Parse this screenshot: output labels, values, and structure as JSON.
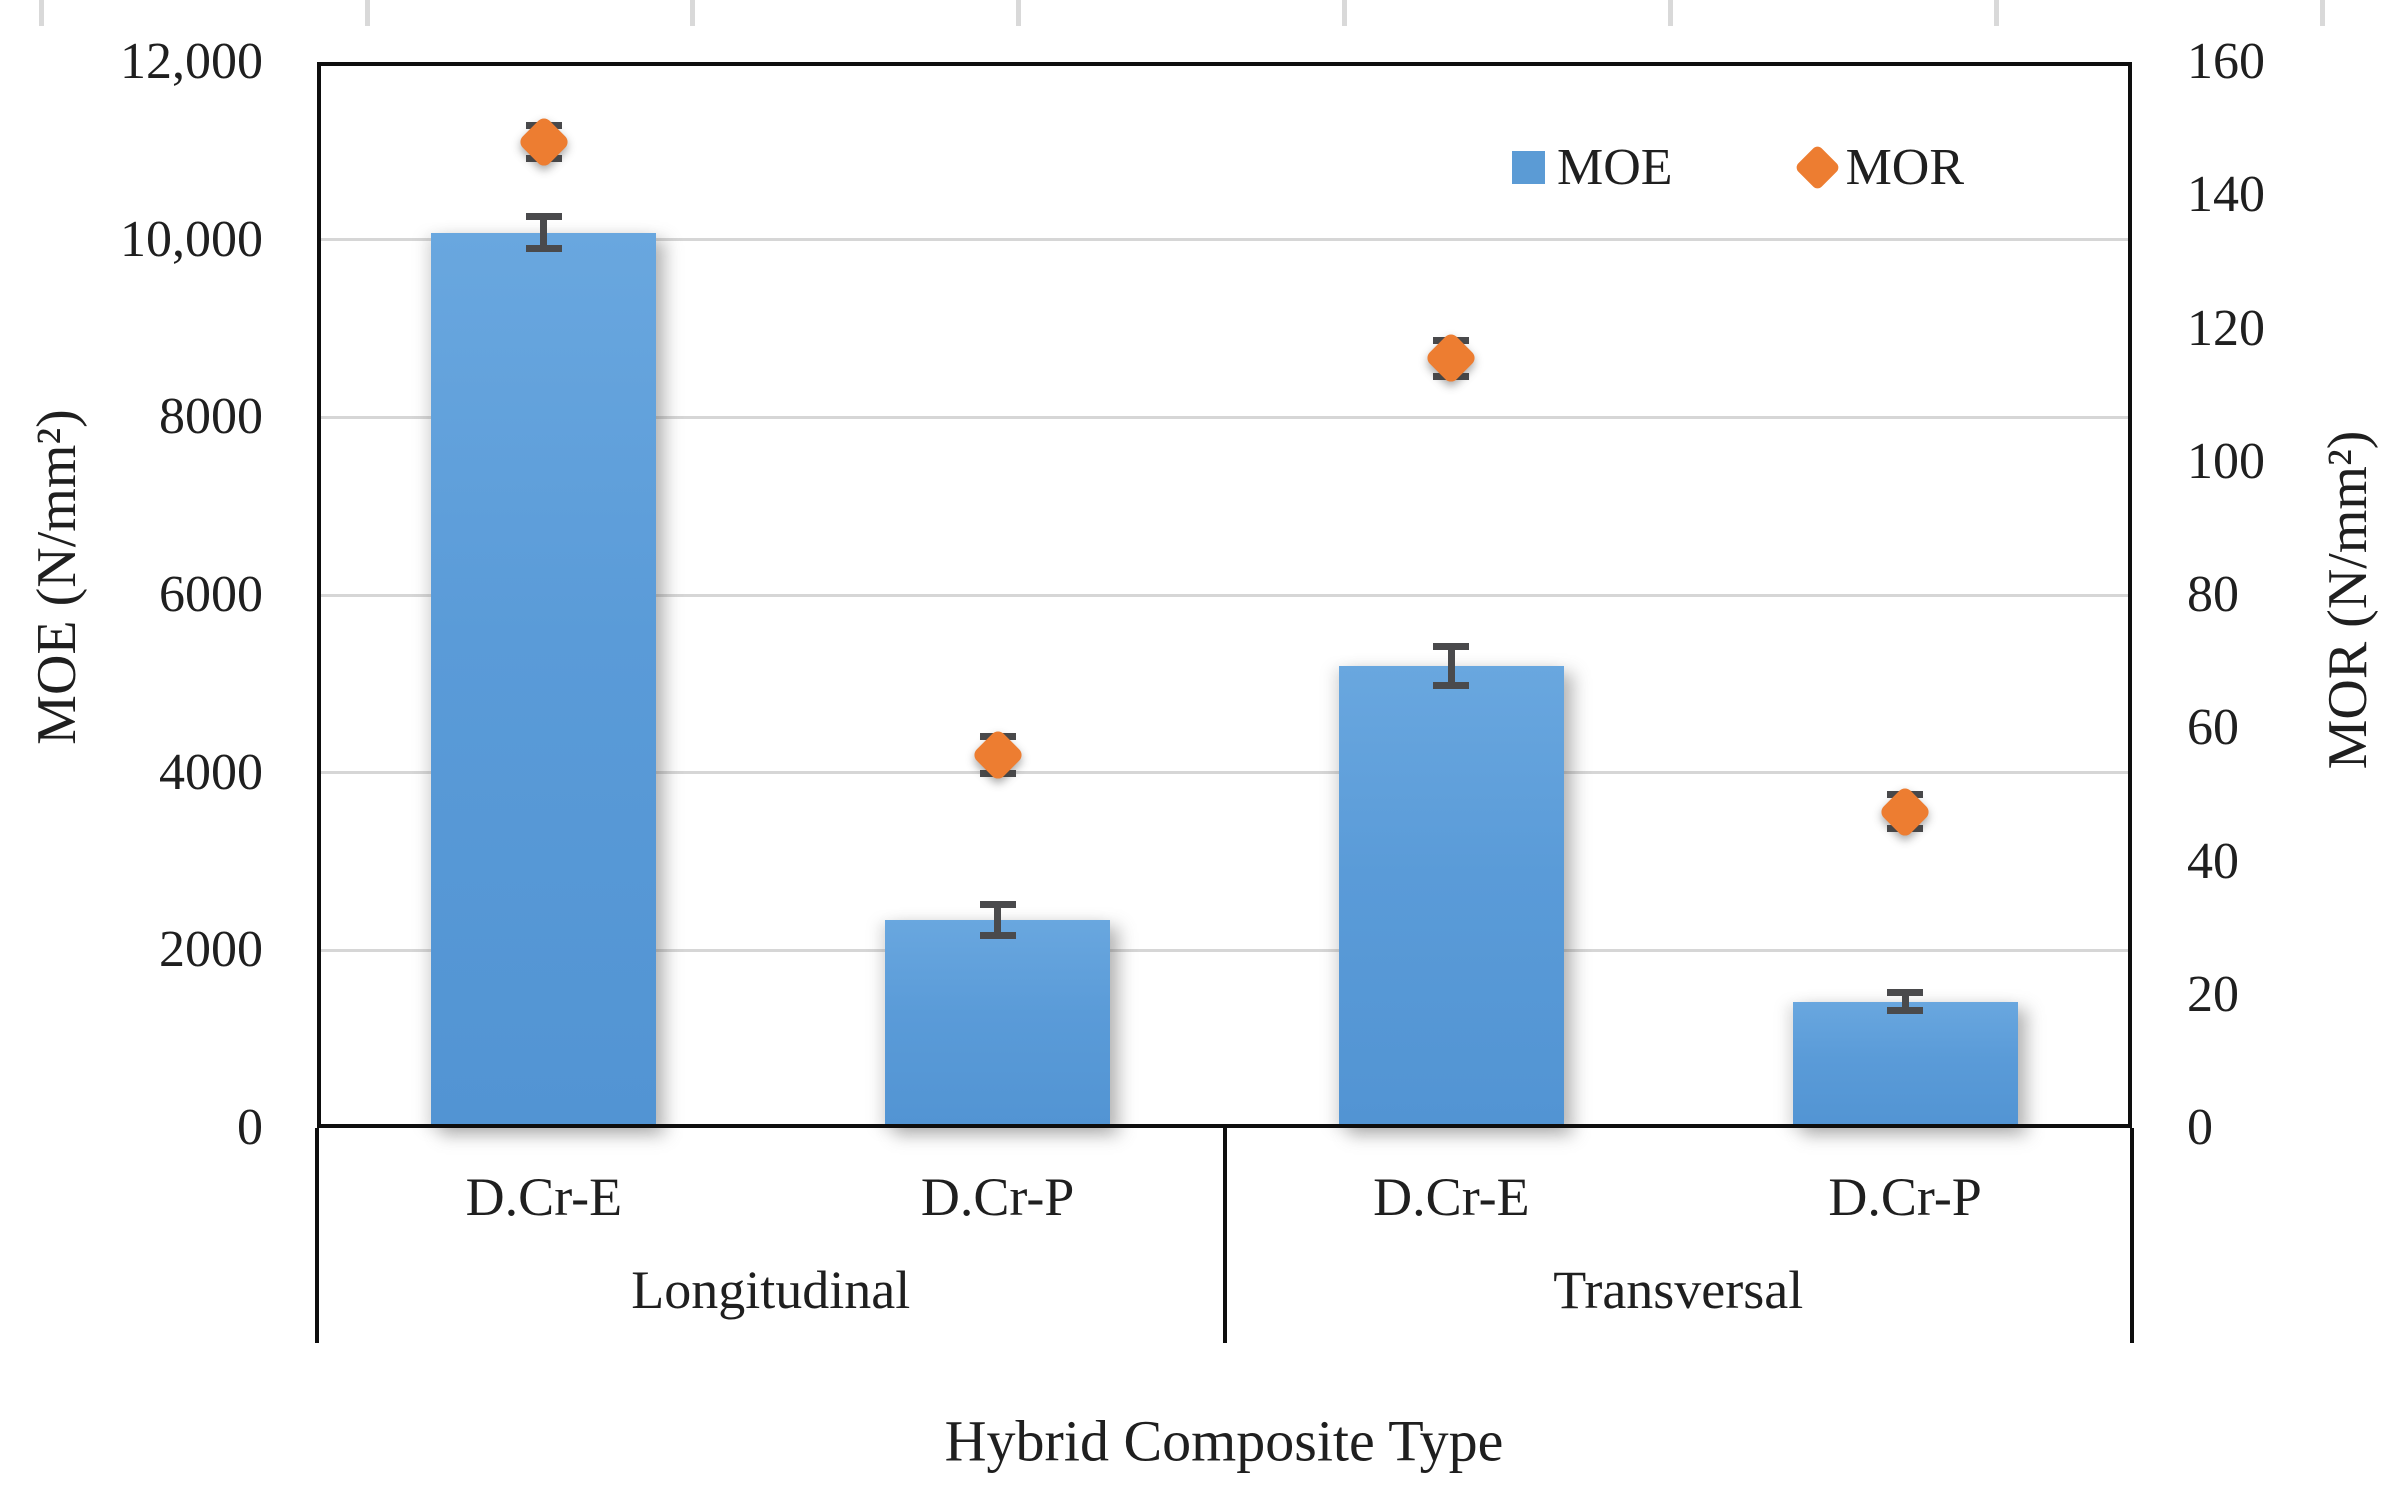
{
  "chart_data": {
    "type": "bar",
    "subtype": "dual-axis bar + scatter(diamond) with error bars",
    "title": "",
    "xlabel": "Hybrid Composite Type",
    "left_axis": {
      "label": "MOE (N/mm²)",
      "min": 0,
      "max": 12000,
      "step": 2000,
      "ticks": [
        {
          "value": 0,
          "label": "0"
        },
        {
          "value": 2000,
          "label": "2000"
        },
        {
          "value": 4000,
          "label": "4000"
        },
        {
          "value": 6000,
          "label": "6000"
        },
        {
          "value": 8000,
          "label": "8000"
        },
        {
          "value": 10000,
          "label": "10,000"
        },
        {
          "value": 12000,
          "label": "12,000"
        }
      ]
    },
    "right_axis": {
      "label": "MOR (N/mm²)",
      "min": 0,
      "max": 160,
      "step": 20,
      "ticks": [
        {
          "value": 0,
          "label": "0"
        },
        {
          "value": 20,
          "label": "20"
        },
        {
          "value": 40,
          "label": "40"
        },
        {
          "value": 60,
          "label": "60"
        },
        {
          "value": 80,
          "label": "80"
        },
        {
          "value": 100,
          "label": "100"
        },
        {
          "value": 120,
          "label": "120"
        },
        {
          "value": 140,
          "label": "140"
        },
        {
          "value": 160,
          "label": "160"
        }
      ]
    },
    "groups": [
      {
        "label": "Longitudinal",
        "categories": [
          "D.Cr-E",
          "D.Cr-P"
        ]
      },
      {
        "label": "Transversal",
        "categories": [
          "D.Cr-E",
          "D.Cr-P"
        ]
      }
    ],
    "series": [
      {
        "name": "MOE",
        "type": "bar",
        "axis": "left",
        "color": "#5B9BD5",
        "values": [
          10080,
          2340,
          5200,
          1420
        ],
        "errors": [
          185,
          175,
          220,
          100
        ]
      },
      {
        "name": "MOR",
        "type": "scatter-diamond",
        "axis": "right",
        "color": "#ED7D31",
        "values": [
          148,
          56,
          115.5,
          47.5
        ],
        "errors": [
          2.5,
          2.8,
          2.7,
          2.6
        ]
      }
    ],
    "legend": {
      "position": "top-right-inside",
      "items": [
        "MOE",
        "MOR"
      ]
    },
    "gridlines": "horizontal, left-axis steps, light gray",
    "error_bar_color": "#4a4a4c"
  }
}
